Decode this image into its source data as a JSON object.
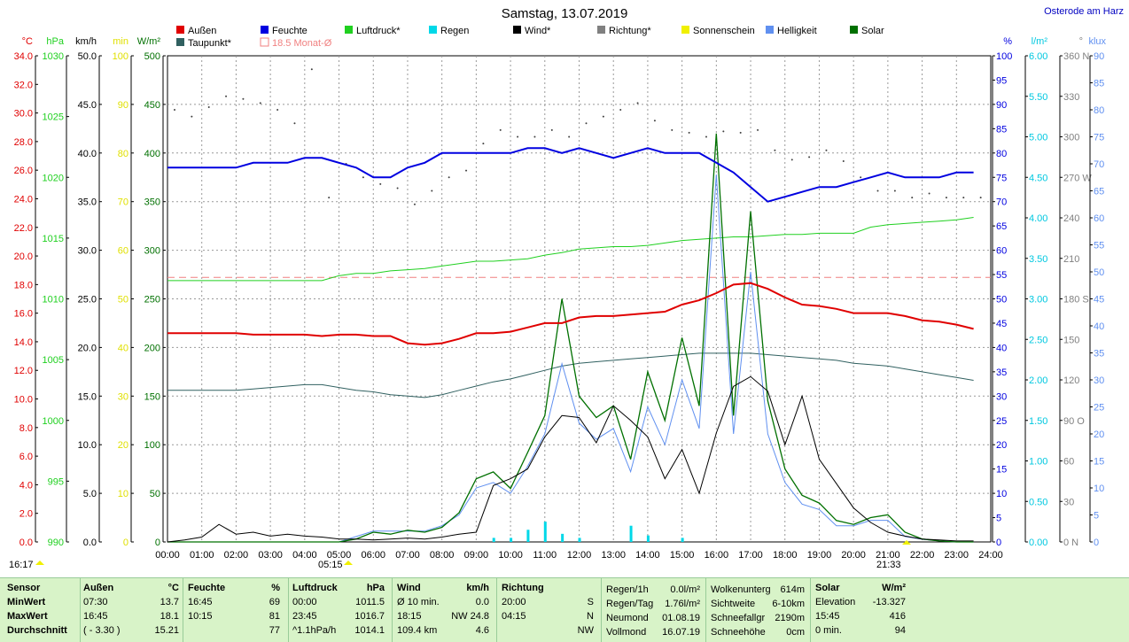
{
  "title": "Samstag, 13.07.2019",
  "location": "Osterode am Harz",
  "legend": [
    {
      "name": "Außen",
      "color": "#e00000"
    },
    {
      "name": "Feuchte",
      "color": "#0000e0"
    },
    {
      "name": "Luftdruck*",
      "color": "#20d020"
    },
    {
      "name": "Regen",
      "color": "#00d8e8"
    },
    {
      "name": "Wind*",
      "color": "#000000"
    },
    {
      "name": "Richtung*",
      "color": "#808080"
    },
    {
      "name": "Sonnenschein",
      "color": "#f0f000"
    },
    {
      "name": "Helligkeit",
      "color": "#6090f0"
    },
    {
      "name": "Solar",
      "color": "#007000"
    },
    {
      "name": "Taupunkt*",
      "color": "#306060"
    },
    {
      "name": "18.5 Monat-Ø",
      "color": "#f08080"
    }
  ],
  "axes_left": [
    {
      "unit": "°C",
      "color": "#e00000",
      "ticks": [
        "34.0",
        "32.0",
        "30.0",
        "28.0",
        "26.0",
        "24.0",
        "22.0",
        "20.0",
        "18.0",
        "16.0",
        "14.0",
        "12.0",
        "10.0",
        "8.0",
        "6.0",
        "4.0",
        "2.0",
        "0.0"
      ]
    },
    {
      "unit": "hPa",
      "color": "#20d020",
      "ticks": [
        "1030",
        "1025",
        "1020",
        "1015",
        "1010",
        "1005",
        "1000",
        "995",
        "990"
      ]
    },
    {
      "unit": "km/h",
      "color": "#000000",
      "ticks": [
        "50.0",
        "45.0",
        "40.0",
        "35.0",
        "30.0",
        "25.0",
        "20.0",
        "15.0",
        "10.0",
        "5.0",
        "0.0"
      ]
    },
    {
      "unit": "min",
      "color": "#e0e000",
      "ticks": [
        "100",
        "90",
        "80",
        "70",
        "60",
        "50",
        "40",
        "30",
        "20",
        "10",
        "0"
      ]
    },
    {
      "unit": "W/m²",
      "color": "#007000",
      "ticks": [
        "500",
        "450",
        "400",
        "350",
        "300",
        "250",
        "200",
        "150",
        "100",
        "50",
        "0"
      ]
    }
  ],
  "axes_right": [
    {
      "unit": "%",
      "color": "#0000e0",
      "ticks": [
        "100",
        "95",
        "90",
        "85",
        "80",
        "75",
        "70",
        "65",
        "60",
        "55",
        "50",
        "45",
        "40",
        "35",
        "30",
        "25",
        "20",
        "15",
        "10",
        "5",
        "0"
      ]
    },
    {
      "unit": "l/m²",
      "color": "#00c8e0",
      "ticks": [
        "6.00",
        "5.50",
        "5.00",
        "4.50",
        "4.00",
        "3.50",
        "3.00",
        "2.50",
        "2.00",
        "1.50",
        "1.00",
        "0.50",
        "0.00"
      ]
    },
    {
      "unit": "°",
      "color": "#808080",
      "ticks": [
        "360 N",
        "330",
        "300",
        "270 W",
        "240",
        "210",
        "180 S",
        "150",
        "120",
        "90 O",
        "60",
        "30",
        "0 N"
      ]
    },
    {
      "unit": "klux",
      "color": "#6090f0",
      "ticks": [
        "90",
        "85",
        "80",
        "75",
        "70",
        "65",
        "60",
        "55",
        "50",
        "45",
        "40",
        "35",
        "30",
        "25",
        "20",
        "15",
        "10",
        "5",
        "0"
      ]
    }
  ],
  "time_labels": [
    "00:00",
    "01:00",
    "02:00",
    "03:00",
    "04:00",
    "05:00",
    "06:00",
    "07:00",
    "08:00",
    "09:00",
    "10:00",
    "11:00",
    "12:00",
    "13:00",
    "14:00",
    "15:00",
    "16:00",
    "17:00",
    "18:00",
    "19:00",
    "20:00",
    "21:00",
    "22:00",
    "23:00",
    "24:00"
  ],
  "sunrise": "05:15",
  "sunset": "21:33",
  "sun_hours": "16:17",
  "chart_data": {
    "type": "line",
    "title": "Samstag, 13.07.2019",
    "x_hours": [
      0,
      0.5,
      1,
      1.5,
      2,
      2.5,
      3,
      3.5,
      4,
      4.5,
      5,
      5.5,
      6,
      6.5,
      7,
      7.5,
      8,
      8.5,
      9,
      9.5,
      10,
      10.5,
      11,
      11.5,
      12,
      12.5,
      13,
      13.5,
      14,
      14.5,
      15,
      15.5,
      16,
      16.5,
      17,
      17.5,
      18,
      18.5,
      19,
      19.5,
      20,
      20.5,
      21,
      21.5,
      22,
      22.5,
      23,
      23.5
    ],
    "series": [
      {
        "name": "Außen",
        "unit": "°C",
        "values": [
          14.6,
          14.6,
          14.6,
          14.6,
          14.6,
          14.5,
          14.5,
          14.5,
          14.5,
          14.4,
          14.5,
          14.5,
          14.4,
          14.4,
          13.9,
          13.8,
          13.9,
          14.2,
          14.6,
          14.6,
          14.7,
          15.0,
          15.3,
          15.3,
          15.7,
          15.8,
          15.8,
          15.9,
          16.0,
          16.1,
          16.6,
          16.9,
          17.4,
          18.0,
          18.1,
          17.7,
          17.1,
          16.6,
          16.5,
          16.3,
          16.0,
          16.0,
          16.0,
          15.8,
          15.5,
          15.4,
          15.2,
          14.9
        ]
      },
      {
        "name": "Feuchte",
        "unit": "%",
        "values": [
          77,
          77,
          77,
          77,
          77,
          78,
          78,
          78,
          79,
          79,
          78,
          77,
          75,
          75,
          77,
          78,
          80,
          80,
          80,
          80,
          80,
          81,
          81,
          80,
          81,
          80,
          79,
          80,
          81,
          80,
          80,
          80,
          78,
          76,
          73,
          70,
          71,
          72,
          73,
          73,
          74,
          75,
          76,
          75,
          75,
          75,
          76,
          76
        ]
      },
      {
        "name": "Luftdruck*",
        "unit": "hPa",
        "values": [
          1011.5,
          1011.5,
          1011.5,
          1011.5,
          1011.5,
          1011.5,
          1011.5,
          1011.5,
          1011.5,
          1011.5,
          1011.9,
          1012.1,
          1012.1,
          1012.3,
          1012.4,
          1012.5,
          1012.7,
          1012.9,
          1013.1,
          1013.1,
          1013.2,
          1013.3,
          1013.6,
          1013.8,
          1014.1,
          1014.2,
          1014.3,
          1014.3,
          1014.4,
          1014.6,
          1014.8,
          1014.9,
          1015.0,
          1015.1,
          1015.1,
          1015.2,
          1015.3,
          1015.3,
          1015.4,
          1015.4,
          1015.4,
          1015.9,
          1016.1,
          1016.2,
          1016.3,
          1016.4,
          1016.5,
          1016.7
        ]
      },
      {
        "name": "Wind*",
        "unit": "km/h",
        "values": [
          0.0,
          0.2,
          0.5,
          1.8,
          0.8,
          1.0,
          0.6,
          0.8,
          0.6,
          0.5,
          0.3,
          0.3,
          0.2,
          0.3,
          0.4,
          0.3,
          0.5,
          0.8,
          1.0,
          5.8,
          6.5,
          7.5,
          10.8,
          13.0,
          12.8,
          10.2,
          14.0,
          12.5,
          10.8,
          6.5,
          9.5,
          5.0,
          11.2,
          16.0,
          17.0,
          15.5,
          10.0,
          15.0,
          8.5,
          6.0,
          3.5,
          2.0,
          1.0,
          0.6,
          0.3,
          0.2,
          0.1,
          0.1
        ]
      },
      {
        "name": "Solar",
        "unit": "W/m²",
        "values": [
          0,
          0,
          0,
          0,
          0,
          0,
          0,
          0,
          0,
          0,
          0,
          3,
          10,
          8,
          12,
          10,
          15,
          30,
          65,
          72,
          55,
          92,
          130,
          250,
          150,
          128,
          140,
          85,
          175,
          125,
          210,
          140,
          420,
          130,
          340,
          145,
          75,
          48,
          40,
          22,
          18,
          25,
          28,
          10,
          3,
          1,
          0,
          0
        ]
      },
      {
        "name": "Helligkeit",
        "unit": "klux",
        "values": [
          0,
          0,
          0,
          0,
          0,
          0,
          0,
          0,
          0,
          0,
          0,
          1,
          2,
          2,
          2,
          2,
          3,
          5,
          10,
          11,
          9,
          14,
          20,
          33,
          22,
          19,
          21,
          13,
          25,
          18,
          30,
          21,
          68,
          20,
          50,
          20,
          11,
          7,
          6,
          3,
          3,
          4,
          4,
          1,
          0.5,
          0.2,
          0,
          0
        ]
      },
      {
        "name": "Taupunkt*",
        "unit": "°C",
        "values": [
          10.6,
          10.6,
          10.6,
          10.6,
          10.6,
          10.7,
          10.8,
          10.9,
          11.0,
          11.0,
          10.8,
          10.6,
          10.5,
          10.3,
          10.2,
          10.1,
          10.3,
          10.6,
          10.9,
          11.2,
          11.4,
          11.7,
          12.0,
          12.3,
          12.5,
          12.6,
          12.7,
          12.8,
          12.9,
          13.0,
          13.1,
          13.2,
          13.2,
          13.2,
          13.2,
          13.1,
          13.0,
          12.9,
          12.8,
          12.7,
          12.5,
          12.4,
          12.3,
          12.1,
          11.9,
          11.7,
          11.5,
          11.3
        ]
      },
      {
        "name": "Regen",
        "unit": "l/m²",
        "values": [
          0,
          0,
          0,
          0,
          0,
          0,
          0,
          0,
          0,
          0,
          0,
          0,
          0,
          0,
          0,
          0,
          0,
          0,
          0,
          0.05,
          0.05,
          0.15,
          0.25,
          0.1,
          0.05,
          0,
          0,
          0.2,
          0.08,
          0,
          0.05,
          0,
          0,
          0,
          0,
          0,
          0,
          0,
          0,
          0,
          0,
          0,
          0,
          0,
          0,
          0,
          0,
          0
        ]
      },
      {
        "name": "Richtung*",
        "unit": "°",
        "values": [
          320,
          315,
          322,
          330,
          328,
          325,
          320,
          310,
          350,
          255,
          280,
          270,
          265,
          262,
          250,
          260,
          270,
          275,
          295,
          305,
          300,
          300,
          305,
          300,
          310,
          315,
          320,
          325,
          312,
          305,
          303,
          300,
          304,
          303,
          305,
          290,
          283,
          285,
          290,
          282,
          270,
          260,
          260,
          255,
          258,
          255,
          255,
          255
        ]
      }
    ],
    "month_avg_temp": 18.5,
    "ylim_temp": [
      0,
      34
    ],
    "ylim_hum": [
      0,
      100
    ],
    "ylim_press": [
      990,
      1030
    ],
    "ylim_wind": [
      0,
      50
    ],
    "ylim_solar": [
      0,
      500
    ],
    "ylim_lux": [
      0,
      90
    ],
    "ylim_rain": [
      0,
      6
    ],
    "ylim_dir": [
      0,
      360
    ]
  },
  "footer": {
    "sensor": {
      "title": "Sensor",
      "rows": [
        "MinWert",
        "MaxWert",
        "Durchschnitt"
      ]
    },
    "aussen": {
      "title": "Außen",
      "unit": "°C",
      "rows": [
        [
          "07:30",
          "13.7"
        ],
        [
          "16:45",
          "18.1"
        ],
        [
          "( - 3.30 )",
          "15.21"
        ]
      ]
    },
    "feuchte": {
      "title": "Feuchte",
      "unit": "%",
      "rows": [
        [
          "16:45",
          "69"
        ],
        [
          "10:15",
          "81"
        ],
        [
          "",
          "77"
        ]
      ]
    },
    "luftdruck": {
      "title": "Luftdruck",
      "unit": "hPa",
      "rows": [
        [
          "00:00",
          "1011.5"
        ],
        [
          "23:45",
          "1016.7"
        ],
        [
          "^1.1hPa/h",
          "1014.1"
        ]
      ]
    },
    "wind": {
      "title": "Wind",
      "unit": "km/h",
      "rows": [
        [
          "Ø 10 min.",
          "0.0"
        ],
        [
          "18:15",
          "NW 24.8"
        ],
        [
          "109.4 km",
          "4.6"
        ]
      ]
    },
    "richtung": {
      "title": "Richtung",
      "rows": [
        [
          "20:00",
          "S"
        ],
        [
          "04:15",
          "N"
        ],
        [
          "",
          "NW"
        ]
      ]
    },
    "regen": {
      "rows": [
        [
          "Regen/1h",
          "0.0l/m²"
        ],
        [
          "Regen/Tag",
          "1.76l/m²"
        ],
        [
          "Neumond",
          "01.08.19"
        ],
        [
          "Vollmond",
          "16.07.19"
        ]
      ]
    },
    "wolken": {
      "rows": [
        [
          "Wolkenunterg",
          "614m"
        ],
        [
          "Sichtweite",
          "6-10km"
        ],
        [
          "Schneefallgr",
          "2190m"
        ],
        [
          "Schneehöhe",
          "0cm"
        ]
      ]
    },
    "solar": {
      "title": "Solar",
      "unit": "W/m²",
      "rows": [
        [
          "Elevation",
          "-13.327"
        ],
        [
          "15:45",
          "416"
        ],
        [
          "0 min.",
          "94"
        ]
      ]
    }
  }
}
